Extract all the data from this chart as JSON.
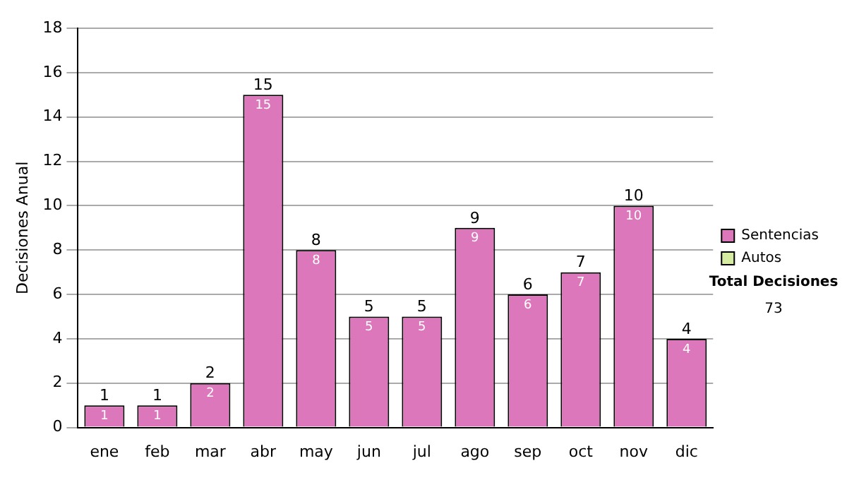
{
  "chart_data": {
    "type": "bar",
    "ylabel": "Decisiones Anual",
    "categories": [
      "ene",
      "feb",
      "mar",
      "abr",
      "may",
      "jun",
      "jul",
      "ago",
      "sep",
      "oct",
      "nov",
      "dic"
    ],
    "series": [
      {
        "name": "Sentencias",
        "color": "#dd77bb",
        "values": [
          1,
          1,
          2,
          15,
          8,
          5,
          5,
          9,
          6,
          7,
          10,
          4
        ],
        "value_labels": [
          "1",
          "1",
          "2",
          "15",
          "8",
          "5",
          "5",
          "9",
          "6",
          "7",
          "10",
          "4"
        ]
      },
      {
        "name": "Autos",
        "color": "#d6eca0",
        "values": [
          0,
          0,
          0,
          0,
          0,
          0,
          0,
          0,
          0,
          0,
          0,
          0
        ]
      }
    ],
    "stacked": true,
    "totals": [
      "1",
      "1",
      "2",
      "15",
      "8",
      "5",
      "5",
      "9",
      "6",
      "7",
      "10",
      "4"
    ],
    "ylim": [
      0,
      18
    ],
    "yticks": [
      0,
      2,
      4,
      6,
      8,
      10,
      12,
      14,
      16,
      18
    ],
    "grid": "y",
    "legend": "right",
    "annotations": [
      "Total Decisiones",
      "73"
    ]
  }
}
